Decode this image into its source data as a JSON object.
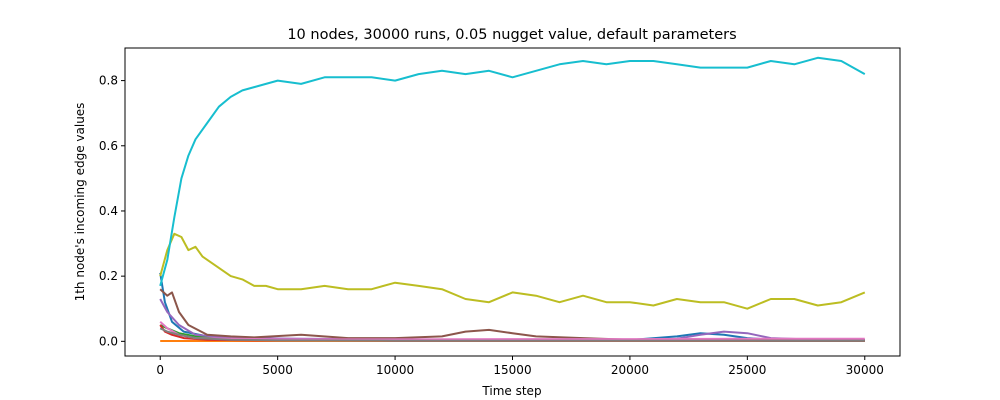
{
  "chart_data": {
    "type": "line",
    "title": "10 nodes, 30000 runs, 0.05 nugget value, default parameters",
    "xlabel": "Time step",
    "ylabel": "1th node's incoming edge values",
    "xlim": [
      -1500,
      31500
    ],
    "ylim": [
      -0.045,
      0.9
    ],
    "xticks": [
      0,
      5000,
      10000,
      15000,
      20000,
      25000,
      30000
    ],
    "yticks": [
      0.0,
      0.2,
      0.4,
      0.6,
      0.8
    ],
    "grid": false,
    "legend": "none",
    "series": [
      {
        "color": "#1f77b4",
        "x": [
          0,
          200,
          500,
          1000,
          2000,
          3000,
          5000,
          10000,
          15000,
          20000,
          22000,
          23000,
          24000,
          25000,
          26000,
          30000
        ],
        "y": [
          0.21,
          0.12,
          0.06,
          0.03,
          0.015,
          0.01,
          0.005,
          0.004,
          0.004,
          0.004,
          0.015,
          0.025,
          0.02,
          0.01,
          0.005,
          0.004
        ]
      },
      {
        "color": "#ff7f0e",
        "x": [
          0,
          5000,
          10000,
          15000,
          20000,
          25000,
          30000
        ],
        "y": [
          0.001,
          0.001,
          0.001,
          0.001,
          0.001,
          0.001,
          0.001
        ]
      },
      {
        "color": "#2ca02c",
        "x": [
          0,
          300,
          800,
          1500,
          3000,
          6000,
          10000,
          15000,
          20000,
          25000,
          30000
        ],
        "y": [
          0.05,
          0.04,
          0.025,
          0.015,
          0.008,
          0.005,
          0.004,
          0.003,
          0.003,
          0.003,
          0.003
        ]
      },
      {
        "color": "#d62728",
        "x": [
          0,
          200,
          500,
          1000,
          2000,
          4000,
          10000,
          20000,
          30000
        ],
        "y": [
          0.05,
          0.03,
          0.02,
          0.01,
          0.005,
          0.003,
          0.002,
          0.002,
          0.002
        ]
      },
      {
        "color": "#9467bd",
        "x": [
          0,
          300,
          800,
          1500,
          3000,
          6000,
          10000,
          15000,
          20000,
          22000,
          23000,
          24000,
          25000,
          26000,
          28000,
          30000
        ],
        "y": [
          0.13,
          0.09,
          0.05,
          0.02,
          0.01,
          0.008,
          0.006,
          0.005,
          0.004,
          0.008,
          0.02,
          0.03,
          0.025,
          0.01,
          0.005,
          0.004
        ]
      },
      {
        "color": "#8c564b",
        "x": [
          0,
          300,
          500,
          800,
          1200,
          2000,
          3000,
          4000,
          6000,
          8000,
          10000,
          12000,
          13000,
          14000,
          15000,
          16000,
          18000,
          20000,
          22000,
          24000,
          25000,
          26000,
          30000
        ],
        "y": [
          0.16,
          0.14,
          0.15,
          0.09,
          0.05,
          0.02,
          0.015,
          0.012,
          0.02,
          0.01,
          0.01,
          0.015,
          0.03,
          0.035,
          0.025,
          0.015,
          0.01,
          0.005,
          0.004,
          0.004,
          0.003,
          0.002,
          0.002
        ]
      },
      {
        "color": "#e377c2",
        "x": [
          0,
          300,
          800,
          1500,
          3000,
          5000,
          10000,
          15000,
          20000,
          25000,
          30000
        ],
        "y": [
          0.06,
          0.04,
          0.02,
          0.01,
          0.008,
          0.006,
          0.006,
          0.007,
          0.007,
          0.008,
          0.008
        ]
      },
      {
        "color": "#7f7f7f",
        "x": [
          0,
          300,
          800,
          1500,
          3000,
          5000,
          10000,
          15000,
          20000,
          25000,
          30000
        ],
        "y": [
          0.04,
          0.03,
          0.02,
          0.01,
          0.005,
          0.003,
          0.002,
          0.002,
          0.002,
          0.002,
          0.002
        ]
      },
      {
        "color": "#bcbd22",
        "x": [
          0,
          300,
          600,
          900,
          1200,
          1500,
          1800,
          2200,
          2600,
          3000,
          3500,
          4000,
          4500,
          5000,
          6000,
          7000,
          8000,
          9000,
          10000,
          11000,
          12000,
          13000,
          14000,
          15000,
          16000,
          17000,
          18000,
          19000,
          20000,
          21000,
          22000,
          23000,
          24000,
          25000,
          26000,
          27000,
          28000,
          29000,
          30000
        ],
        "y": [
          0.2,
          0.28,
          0.33,
          0.32,
          0.28,
          0.29,
          0.26,
          0.24,
          0.22,
          0.2,
          0.19,
          0.17,
          0.17,
          0.16,
          0.16,
          0.17,
          0.16,
          0.16,
          0.18,
          0.17,
          0.16,
          0.13,
          0.12,
          0.15,
          0.14,
          0.12,
          0.14,
          0.12,
          0.12,
          0.11,
          0.13,
          0.12,
          0.12,
          0.1,
          0.13,
          0.13,
          0.11,
          0.12,
          0.15
        ]
      },
      {
        "color": "#17becf",
        "x": [
          0,
          300,
          600,
          900,
          1200,
          1500,
          2000,
          2500,
          3000,
          3500,
          4000,
          4500,
          5000,
          6000,
          7000,
          8000,
          9000,
          10000,
          11000,
          12000,
          13000,
          14000,
          15000,
          16000,
          17000,
          18000,
          19000,
          20000,
          21000,
          22000,
          23000,
          24000,
          25000,
          26000,
          27000,
          28000,
          29000,
          30000
        ],
        "y": [
          0.17,
          0.25,
          0.38,
          0.5,
          0.57,
          0.62,
          0.67,
          0.72,
          0.75,
          0.77,
          0.78,
          0.79,
          0.8,
          0.79,
          0.81,
          0.81,
          0.81,
          0.8,
          0.82,
          0.83,
          0.82,
          0.83,
          0.81,
          0.83,
          0.85,
          0.86,
          0.85,
          0.86,
          0.86,
          0.85,
          0.84,
          0.84,
          0.84,
          0.86,
          0.85,
          0.87,
          0.86,
          0.82
        ]
      }
    ]
  }
}
